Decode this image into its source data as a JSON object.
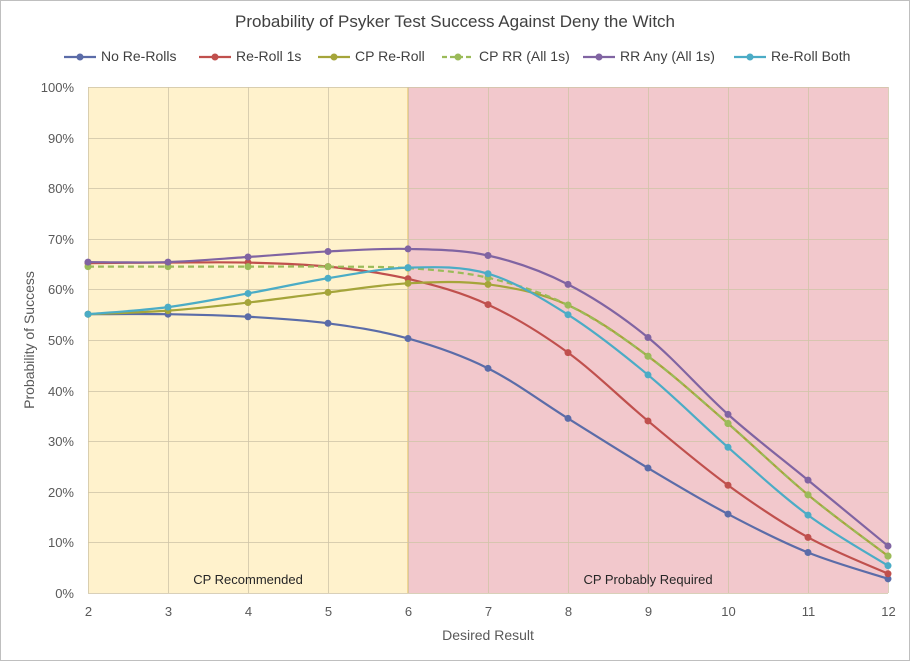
{
  "chart_data": {
    "type": "line",
    "title": "Probability of Psyker Test Success Against Deny the Witch",
    "xlabel": "Desired Result",
    "ylabel": "Probability of Success",
    "x": [
      2,
      3,
      4,
      5,
      6,
      7,
      8,
      9,
      10,
      11,
      12
    ],
    "ylim": [
      0,
      100
    ],
    "yticks": [
      "0%",
      "10%",
      "20%",
      "30%",
      "40%",
      "50%",
      "60%",
      "70%",
      "80%",
      "90%",
      "100%"
    ],
    "grid": true,
    "legend_position": "top",
    "regions": [
      {
        "label": "CP Recommended",
        "x_start": 2,
        "x_end": 6,
        "color": "#fff2cc"
      },
      {
        "label": "CP Probably Required",
        "x_start": 6,
        "x_end": 12,
        "color": "#f2c8cc"
      }
    ],
    "series": [
      {
        "name": "No Re-Rolls",
        "color": "#5b6ca8",
        "dashed": false,
        "values": [
          55.1,
          55.1,
          54.6,
          53.3,
          50.3,
          44.4,
          34.5,
          24.7,
          15.6,
          8.0,
          2.8
        ]
      },
      {
        "name": "Re-Roll 1s",
        "color": "#c0504d",
        "dashed": false,
        "values": [
          65.2,
          65.3,
          65.3,
          64.5,
          62.1,
          57.0,
          47.5,
          34.0,
          21.3,
          11.0,
          3.8
        ]
      },
      {
        "name": "CP Re-Roll",
        "color": "#a5a53a",
        "dashed": false,
        "values": [
          55.1,
          55.8,
          57.4,
          59.4,
          61.2,
          61.0,
          56.9,
          46.8,
          33.5,
          19.4,
          7.3
        ]
      },
      {
        "name": "CP RR (All 1s)",
        "color": "#9bbb59",
        "dashed": true,
        "values": [
          64.5,
          64.5,
          64.5,
          64.5,
          64.2,
          62.3,
          56.9,
          46.8,
          33.5,
          19.4,
          7.3
        ]
      },
      {
        "name": "RR Any (All 1s)",
        "color": "#8064a2",
        "dashed": false,
        "values": [
          65.4,
          65.4,
          66.4,
          67.5,
          68.0,
          66.7,
          61.0,
          50.5,
          35.3,
          22.3,
          9.3
        ]
      },
      {
        "name": "Re-Roll Both",
        "color": "#4bacc6",
        "dashed": false,
        "values": [
          55.1,
          56.5,
          59.2,
          62.2,
          64.3,
          63.1,
          55.0,
          43.1,
          28.8,
          15.4,
          5.4
        ]
      }
    ]
  }
}
